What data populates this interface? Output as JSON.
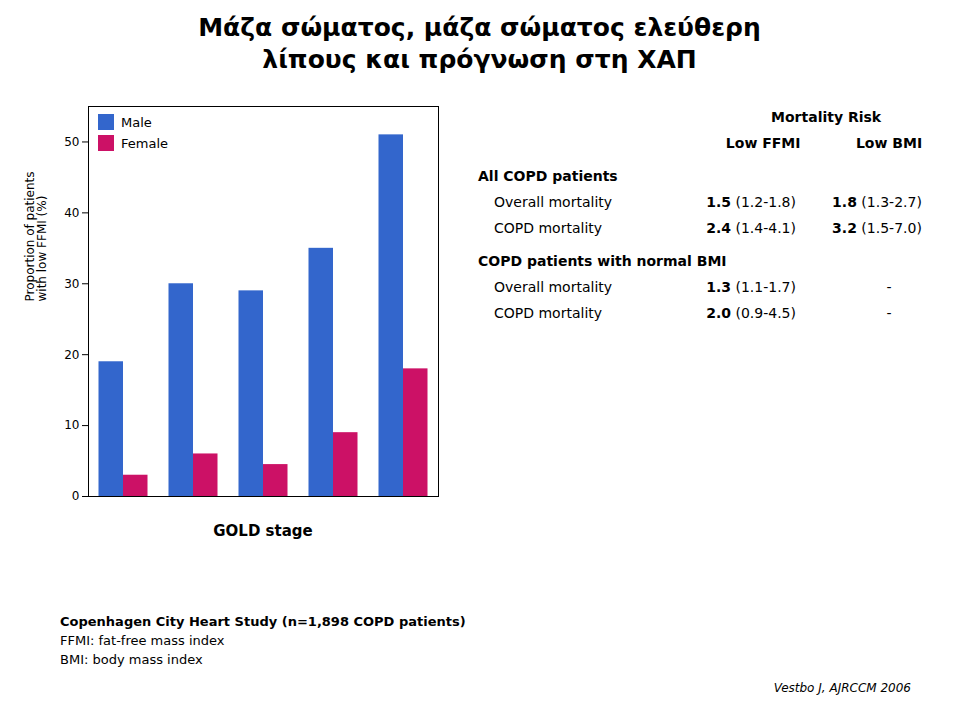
{
  "chart_data": {
    "type": "bar",
    "title": "Μάζα σώματος, μάζα σώματος ελεύθερη\nλίπους και πρόγνωση στη ΧΑΠ",
    "categories": [
      null,
      null,
      null,
      null,
      null
    ],
    "series": [
      {
        "name": "Male",
        "color": "#3366CC",
        "values": [
          19,
          30,
          29,
          35,
          51
        ]
      },
      {
        "name": "Female",
        "color": "#CC1166",
        "values": [
          3,
          6,
          4.5,
          9,
          18
        ]
      }
    ],
    "xlabel": "GOLD stage",
    "ylabel": "Proportion of patients\nwith low FFMI (%)",
    "ylim": [
      0,
      55
    ],
    "yticks": [
      0,
      10,
      20,
      30,
      40,
      50
    ],
    "grid": false,
    "legend": "upper left",
    "tick_labels": "y",
    "table": {
      "title": "Mortality Risk",
      "columns": [
        "Low FFMI",
        "Low BMI"
      ],
      "groups": [
        {
          "name": "All COPD patients",
          "rows": [
            {
              "label": "Overall mortality",
              "cells": [
                {
                  "estimate": "1.5",
                  "ci": "(1.2-1.8)"
                },
                {
                  "estimate": "1.8",
                  "ci": "(1.3-2.7)"
                }
              ]
            },
            {
              "label": "COPD mortality",
              "cells": [
                {
                  "estimate": "2.4",
                  "ci": "(1.4-4.1)"
                },
                {
                  "estimate": "3.2",
                  "ci": "(1.5-7.0)"
                }
              ]
            }
          ]
        },
        {
          "name": "COPD patients with normal BMI",
          "rows": [
            {
              "label": "Overall mortality",
              "cells": [
                {
                  "estimate": "1.3",
                  "ci": "(1.1-1.7)"
                },
                "-"
              ]
            },
            {
              "label": "COPD mortality",
              "cells": [
                {
                  "estimate": "2.0",
                  "ci": "(0.9-4.5)"
                },
                "-"
              ]
            }
          ]
        }
      ]
    },
    "footnotes": [
      "Copenhagen City Heart Study (n=1,898 COPD patients)",
      "FFMI: fat-free mass index",
      "BMI: body mass index"
    ],
    "citation": "Vestbo J, AJRCCM 2006"
  }
}
